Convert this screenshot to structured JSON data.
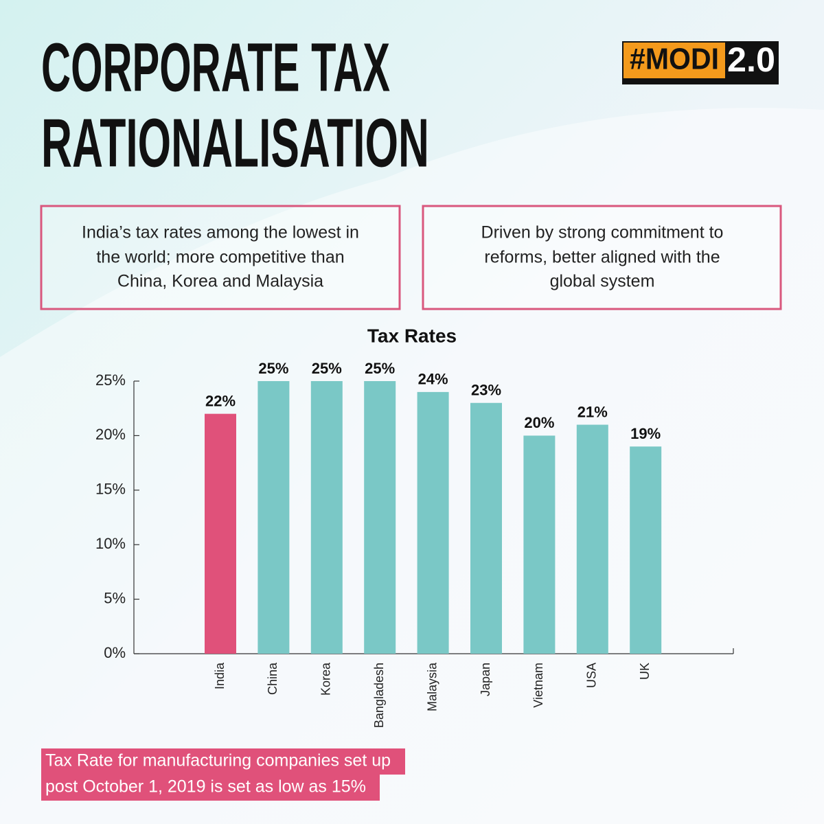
{
  "header": {
    "title": [
      "CORPORATE TAX",
      "RATIONALISATION"
    ],
    "badge": {
      "tag": "#MODI",
      "version": "2.0"
    }
  },
  "boxes": [
    {
      "lines": [
        "India’s tax rates among the lowest in",
        "the world; more competitive than",
        "China, Korea and Malaysia"
      ]
    },
    {
      "lines": [
        "Driven by strong commitment to",
        "reforms, better aligned with the",
        "global system"
      ]
    }
  ],
  "chart_data": {
    "type": "bar",
    "title": "Tax Rates",
    "categories": [
      "India",
      "China",
      "Korea",
      "Bangladesh",
      "Malaysia",
      "Japan",
      "Vietnam",
      "USA",
      "UK"
    ],
    "values": [
      22,
      25,
      25,
      25,
      24,
      23,
      20,
      21,
      19
    ],
    "value_labels": [
      "22%",
      "25%",
      "25%",
      "25%",
      "24%",
      "23%",
      "20%",
      "21%",
      "19%"
    ],
    "colors": [
      "#e0517a",
      "#7ac8c6",
      "#7ac8c6",
      "#7ac8c6",
      "#7ac8c6",
      "#7ac8c6",
      "#7ac8c6",
      "#7ac8c6",
      "#7ac8c6"
    ],
    "ylim": [
      0,
      25
    ],
    "yticks": [
      {
        "value": 0,
        "label": "0%"
      },
      {
        "value": 5,
        "label": "5%"
      },
      {
        "value": 10,
        "label": "10%"
      },
      {
        "value": 15,
        "label": "15%"
      },
      {
        "value": 20,
        "label": "20%"
      },
      {
        "value": 25,
        "label": "25%"
      }
    ]
  },
  "footnote": [
    "Tax Rate for manufacturing companies set up",
    "post October 1, 2019 is set as low as 15%"
  ]
}
